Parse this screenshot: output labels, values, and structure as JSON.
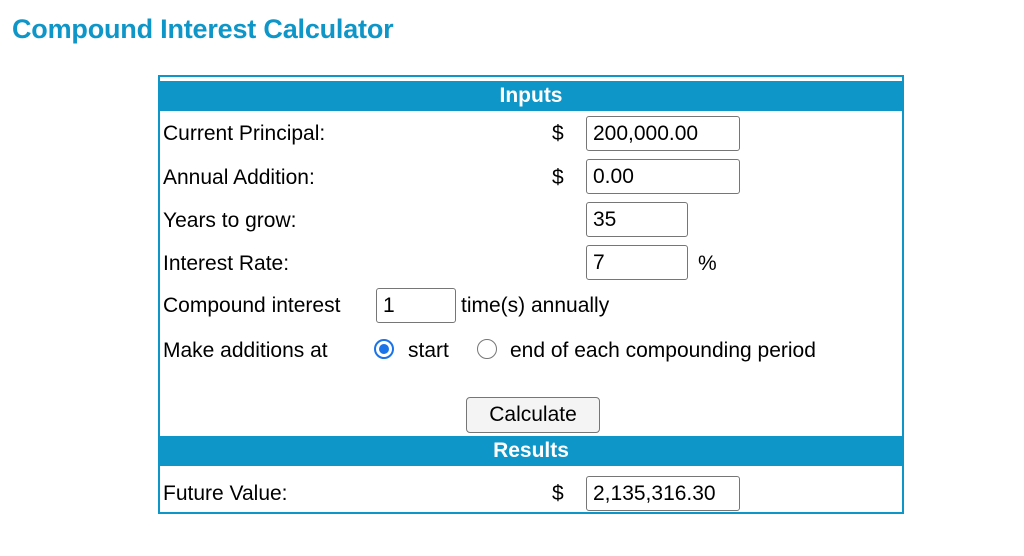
{
  "page": {
    "title": "Compound Interest Calculator"
  },
  "inputs": {
    "header": "Inputs",
    "currency_symbol": "$",
    "principal": {
      "label": "Current Principal:",
      "value": "200,000.00"
    },
    "addition": {
      "label": "Annual Addition:",
      "value": "0.00"
    },
    "years": {
      "label": "Years to grow:",
      "value": "35"
    },
    "rate": {
      "label": "Interest Rate:",
      "value": "7",
      "suffix": "%"
    },
    "compound": {
      "label": "Compound interest",
      "value": "1",
      "suffix": "time(s) annually"
    },
    "additions": {
      "label": "Make additions at",
      "option_start": "start",
      "option_end": "end of each compounding period",
      "selected": "start"
    },
    "calculate_label": "Calculate"
  },
  "results": {
    "header": "Results",
    "currency_symbol": "$",
    "future_value": {
      "label": "Future Value:",
      "value": "2,135,316.30"
    }
  },
  "colors": {
    "accent": "#0e96c8",
    "radio": "#1a73e8"
  }
}
